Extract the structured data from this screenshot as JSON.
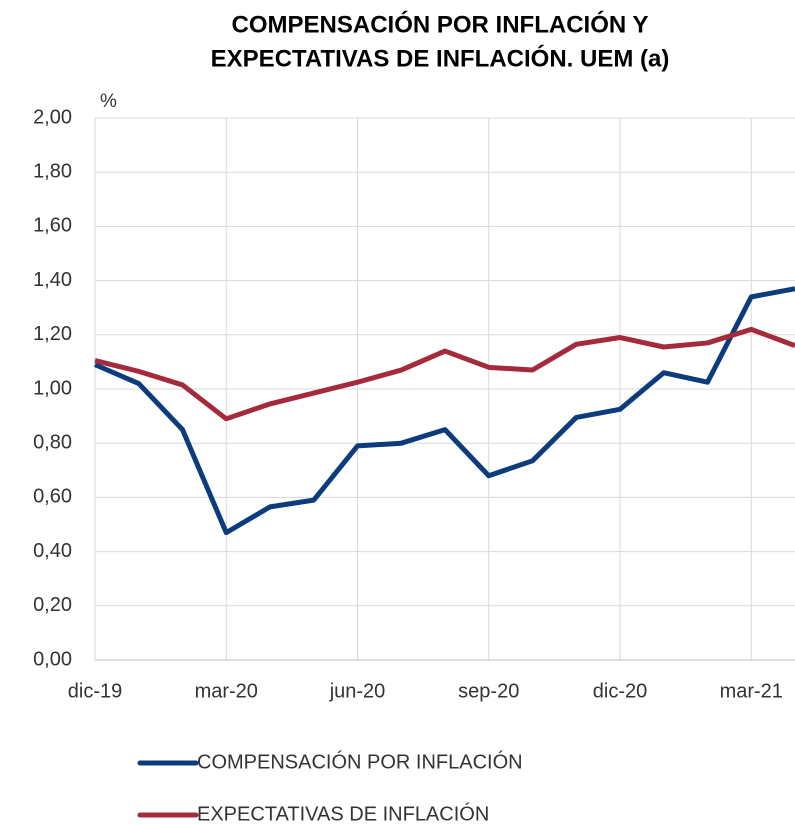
{
  "chart_data": {
    "type": "line",
    "title": [
      "COMPENSACIÓN POR INFLACIÓN Y",
      "EXPECTATIVAS DE INFLACIÓN. UEM (a)"
    ],
    "y_label": "%",
    "categories": [
      "dic-19",
      null,
      null,
      "mar-20",
      null,
      null,
      "jun-20",
      null,
      null,
      "sep-20",
      null,
      null,
      "dic-20",
      null,
      null,
      "mar-21",
      null
    ],
    "series": [
      {
        "name": "COMPENSACIÓN POR INFLACIÓN",
        "color": "#0d3c7d",
        "values": [
          1.09,
          1.02,
          0.85,
          0.47,
          0.565,
          0.59,
          0.79,
          0.8,
          0.85,
          0.68,
          0.735,
          0.895,
          0.925,
          1.06,
          1.025,
          1.34,
          1.37
        ]
      },
      {
        "name": "EXPECTATIVAS DE INFLACIÓN",
        "color": "#a52a3c",
        "values": [
          1.105,
          1.065,
          1.015,
          0.89,
          0.945,
          0.985,
          1.025,
          1.07,
          1.14,
          1.08,
          1.07,
          1.165,
          1.19,
          1.155,
          1.17,
          1.22,
          1.16
        ]
      }
    ],
    "ylim": [
      0,
      2
    ],
    "yticks": [
      {
        "value": 0,
        "label": "0,00"
      },
      {
        "value": 0.2,
        "label": "0,20"
      },
      {
        "value": 0.4,
        "label": "0,40"
      },
      {
        "value": 0.6,
        "label": "0,60"
      },
      {
        "value": 0.8,
        "label": "0,80"
      },
      {
        "value": 1,
        "label": "1,00"
      },
      {
        "value": 1.2,
        "label": "1,20"
      },
      {
        "value": 1.4,
        "label": "1,40"
      },
      {
        "value": 1.6,
        "label": "1,60"
      },
      {
        "value": 1.8,
        "label": "1,80"
      },
      {
        "value": 2,
        "label": "2,00"
      }
    ],
    "grid": true
  }
}
